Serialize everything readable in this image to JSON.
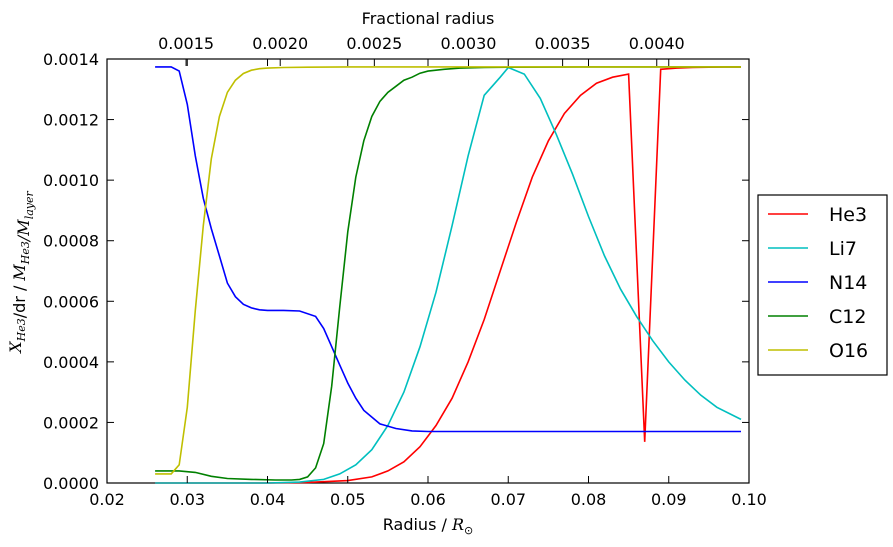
{
  "chart_data": {
    "type": "line",
    "xlabel": "Radius / ",
    "xlabel_math": "R",
    "xlabel_sub": "⊙",
    "ylabel_parts": [
      {
        "t": "X",
        "sub": "He3",
        "math": true
      },
      {
        "t": "/dr / ",
        "math": false
      },
      {
        "t": "M",
        "sub": "He3",
        "math": true
      },
      {
        "t": "/",
        "math": true
      },
      {
        "t": "M",
        "sub": "layer",
        "math": true
      }
    ],
    "top_xlabel": "Fractional radius",
    "xlim": [
      0.02,
      0.1
    ],
    "ylim": [
      0.0,
      0.0014
    ],
    "x_ticks": [
      "0.02",
      "0.03",
      "0.04",
      "0.05",
      "0.06",
      "0.07",
      "0.08",
      "0.09",
      "0.10"
    ],
    "y_ticks": [
      "0.0000",
      "0.0002",
      "0.0004",
      "0.0006",
      "0.0008",
      "0.0010",
      "0.0012",
      "0.0014"
    ],
    "top_ticks": [
      {
        "value": 0.0015,
        "label": "0.0015"
      },
      {
        "value": 0.002,
        "label": "0.0020"
      },
      {
        "value": 0.0025,
        "label": "0.0025"
      },
      {
        "value": 0.003,
        "label": "0.0030"
      },
      {
        "value": 0.0035,
        "label": "0.0035"
      },
      {
        "value": 0.004,
        "label": "0.0040"
      }
    ],
    "top_axis_x_range": [
      0.00108,
      0.00449
    ],
    "legend_position": "outside-right",
    "grid": false,
    "series": [
      {
        "name": "He3",
        "color": "#ff0000",
        "x": [
          0.026,
          0.03,
          0.035,
          0.04,
          0.045,
          0.05,
          0.053,
          0.055,
          0.057,
          0.059,
          0.061,
          0.063,
          0.065,
          0.067,
          0.069,
          0.071,
          0.073,
          0.075,
          0.077,
          0.079,
          0.081,
          0.083,
          0.085,
          0.087,
          0.089,
          0.091,
          0.093,
          0.095,
          0.097,
          0.099
        ],
        "y": [
          0.0,
          0.0,
          0.0,
          0.0,
          2e-06,
          8e-06,
          2e-05,
          4e-05,
          7e-05,
          0.00012,
          0.00019,
          0.00028,
          0.0004,
          0.00054,
          0.0007,
          0.00086,
          0.00101,
          0.00113,
          0.00122,
          0.00128,
          0.00132,
          0.00134,
          0.00135,
          0.000136,
          0.001366,
          0.00137,
          0.001372,
          0.001373,
          0.001374,
          0.001374
        ]
      },
      {
        "name": "Li7",
        "color": "#00bfbf",
        "x": [
          0.026,
          0.03,
          0.035,
          0.04,
          0.044,
          0.047,
          0.049,
          0.051,
          0.053,
          0.055,
          0.057,
          0.059,
          0.061,
          0.063,
          0.065,
          0.067,
          0.069,
          0.07,
          0.072,
          0.074,
          0.076,
          0.078,
          0.08,
          0.082,
          0.084,
          0.086,
          0.088,
          0.09,
          0.092,
          0.094,
          0.096,
          0.099
        ],
        "y": [
          0.0,
          0.0,
          0.0,
          0.0,
          3e-06,
          1.2e-05,
          3e-05,
          6e-05,
          0.00011,
          0.00019,
          0.0003,
          0.00045,
          0.00063,
          0.00085,
          0.00108,
          0.00128,
          0.00134,
          0.001372,
          0.00135,
          0.00127,
          0.00115,
          0.00102,
          0.00088,
          0.00075,
          0.00064,
          0.00055,
          0.00047,
          0.0004,
          0.00034,
          0.00029,
          0.00025,
          0.00021
        ]
      },
      {
        "name": "N14",
        "color": "#0000ff",
        "x": [
          0.026,
          0.028,
          0.029,
          0.03,
          0.031,
          0.032,
          0.033,
          0.034,
          0.035,
          0.036,
          0.037,
          0.038,
          0.039,
          0.04,
          0.042,
          0.044,
          0.046,
          0.047,
          0.048,
          0.049,
          0.05,
          0.051,
          0.052,
          0.054,
          0.056,
          0.058,
          0.06,
          0.065,
          0.07,
          0.08,
          0.09,
          0.099
        ],
        "y": [
          0.001374,
          0.001374,
          0.00136,
          0.00125,
          0.00108,
          0.00094,
          0.00084,
          0.00075,
          0.00066,
          0.000615,
          0.00059,
          0.000578,
          0.000572,
          0.00057,
          0.00057,
          0.000568,
          0.00055,
          0.00051,
          0.00045,
          0.00039,
          0.00033,
          0.00028,
          0.00024,
          0.000195,
          0.00018,
          0.000172,
          0.00017,
          0.00017,
          0.00017,
          0.00017,
          0.00017,
          0.00017
        ]
      },
      {
        "name": "C12",
        "color": "#008000",
        "x": [
          0.026,
          0.029,
          0.031,
          0.033,
          0.035,
          0.038,
          0.041,
          0.043,
          0.044,
          0.045,
          0.046,
          0.047,
          0.048,
          0.049,
          0.05,
          0.051,
          0.052,
          0.053,
          0.054,
          0.055,
          0.056,
          0.057,
          0.058,
          0.059,
          0.06,
          0.062,
          0.064,
          0.067,
          0.07,
          0.08,
          0.09,
          0.099
        ],
        "y": [
          4e-05,
          4e-05,
          3.5e-05,
          2.2e-05,
          1.5e-05,
          1.2e-05,
          1e-05,
          1e-05,
          1.2e-05,
          2e-05,
          5e-05,
          0.00013,
          0.00032,
          0.00058,
          0.00083,
          0.00101,
          0.00113,
          0.00121,
          0.00126,
          0.00129,
          0.00131,
          0.00133,
          0.00134,
          0.001353,
          0.00136,
          0.001366,
          0.00137,
          0.001372,
          0.001373,
          0.001374,
          0.001374,
          0.001374
        ]
      },
      {
        "name": "O16",
        "color": "#bfbf00",
        "x": [
          0.026,
          0.028,
          0.029,
          0.03,
          0.031,
          0.032,
          0.033,
          0.034,
          0.035,
          0.036,
          0.037,
          0.038,
          0.039,
          0.04,
          0.042,
          0.045,
          0.05,
          0.06,
          0.07,
          0.08,
          0.09,
          0.099
        ],
        "y": [
          3e-05,
          3e-05,
          6e-05,
          0.00025,
          0.00057,
          0.00085,
          0.00107,
          0.00121,
          0.00129,
          0.00133,
          0.001352,
          0.001363,
          0.001368,
          0.00137,
          0.001372,
          0.001373,
          0.001374,
          0.001374,
          0.001374,
          0.001374,
          0.001374,
          0.001374
        ]
      }
    ]
  }
}
